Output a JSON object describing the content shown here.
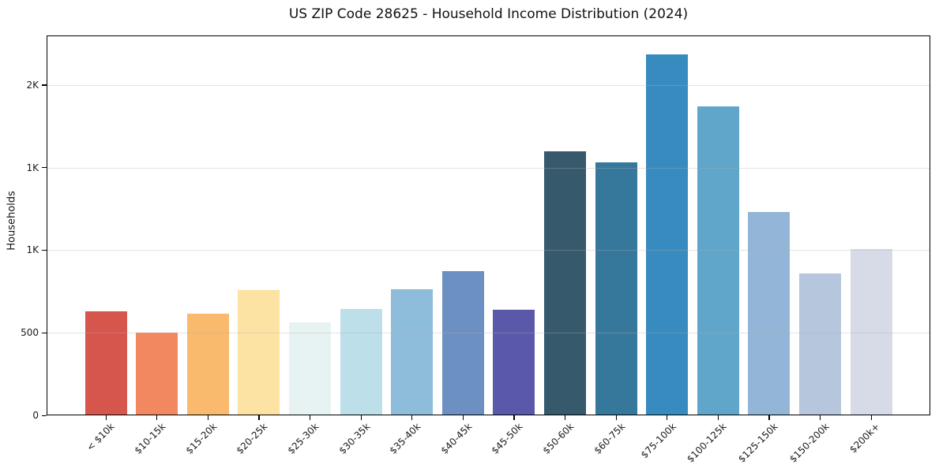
{
  "chart_data": {
    "type": "bar",
    "title": "US ZIP Code 28625 - Household Income Distribution (2024)",
    "xlabel": "",
    "ylabel": "Households",
    "ylim": [
      0,
      2300
    ],
    "grid": "horizontal-light",
    "legend": "none",
    "background_color": "#ffffff",
    "y_ticks": [
      {
        "value": 0,
        "label": "0"
      },
      {
        "value": 500,
        "label": "500"
      },
      {
        "value": 1000,
        "label": "1K"
      },
      {
        "value": 1500,
        "label": "1K"
      },
      {
        "value": 2000,
        "label": "2K"
      }
    ],
    "categories": [
      "< $10k",
      "$10-15k",
      "$15-20k",
      "$20-25k",
      "$25-30k",
      "$30-35k",
      "$35-40k",
      "$40-45k",
      "$45-50k",
      "$50-60k",
      "$60-75k",
      "$75-100k",
      "$100-125k",
      "$125-150k",
      "$150-200k",
      "$200k+"
    ],
    "values": [
      630,
      500,
      615,
      760,
      565,
      645,
      765,
      875,
      640,
      1600,
      1530,
      2185,
      1870,
      1230,
      860,
      1005
    ],
    "bar_colors": [
      "#d6564e",
      "#f2885f",
      "#f9ba6e",
      "#fde3a3",
      "#e7f3f2",
      "#bddfe9",
      "#8ebcdb",
      "#6d90c2",
      "#5a58a8",
      "#36596b",
      "#36789b",
      "#388bbf",
      "#60a6ca",
      "#93b5d7",
      "#b6c6dd",
      "#d7dbe7"
    ]
  }
}
